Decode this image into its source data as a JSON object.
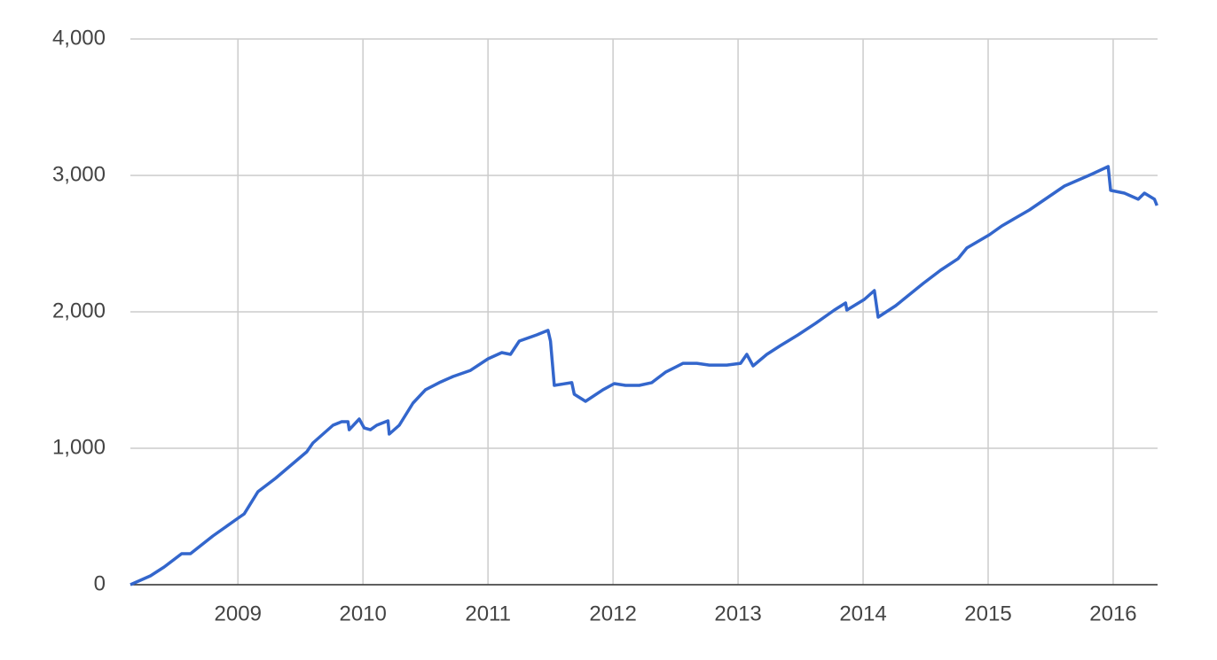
{
  "chart_data": {
    "type": "line",
    "color": "#3366cc",
    "grid": true,
    "x": [
      2008.14,
      2008.3,
      2008.41,
      2008.55,
      2008.62,
      2008.8,
      2009.0,
      2009.05,
      2009.16,
      2009.3,
      2009.55,
      2009.6,
      2009.76,
      2009.83,
      2009.88,
      2009.89,
      2009.97,
      2010.01,
      2010.06,
      2010.11,
      2010.2,
      2010.21,
      2010.29,
      2010.4,
      2010.5,
      2010.61,
      2010.72,
      2010.86,
      2011.0,
      2011.11,
      2011.18,
      2011.25,
      2011.39,
      2011.48,
      2011.5,
      2011.53,
      2011.67,
      2011.69,
      2011.78,
      2011.92,
      2012.01,
      2012.1,
      2012.21,
      2012.31,
      2012.42,
      2012.56,
      2012.67,
      2012.77,
      2012.91,
      2013.02,
      2013.07,
      2013.12,
      2013.23,
      2013.34,
      2013.48,
      2013.62,
      2013.77,
      2013.86,
      2013.87,
      2014.01,
      2014.09,
      2014.12,
      2014.26,
      2014.48,
      2014.62,
      2014.76,
      2014.83,
      2015.01,
      2015.11,
      2015.33,
      2015.61,
      2015.82,
      2015.96,
      2015.98,
      2016.09,
      2016.2,
      2016.25,
      2016.33,
      2016.35
    ],
    "values": [
      0,
      65,
      130,
      227,
      227,
      357,
      487,
      519,
      682,
      779,
      974,
      1039,
      1169,
      1195,
      1195,
      1136,
      1214,
      1149,
      1136,
      1169,
      1201,
      1104,
      1169,
      1331,
      1429,
      1481,
      1526,
      1571,
      1656,
      1701,
      1688,
      1786,
      1831,
      1864,
      1786,
      1461,
      1481,
      1396,
      1344,
      1429,
      1474,
      1461,
      1461,
      1481,
      1558,
      1623,
      1623,
      1610,
      1610,
      1623,
      1688,
      1604,
      1688,
      1753,
      1831,
      1916,
      2013,
      2065,
      2013,
      2091,
      2156,
      1961,
      2045,
      2208,
      2305,
      2390,
      2468,
      2565,
      2630,
      2747,
      2922,
      3006,
      3065,
      2890,
      2870,
      2825,
      2870,
      2825,
      2779
    ],
    "xlim": [
      2008.14,
      2016.355
    ],
    "xticks": [
      2009,
      2010,
      2011,
      2012,
      2013,
      2014,
      2015,
      2016
    ],
    "ylim": [
      0,
      4000
    ],
    "yticks": [
      0,
      {
        "value": 1000,
        "label": "1,000"
      },
      {
        "value": 2000,
        "label": "2,000"
      },
      {
        "value": 3000,
        "label": "3,000"
      },
      {
        "value": 4000,
        "label": "4,000"
      }
    ]
  }
}
